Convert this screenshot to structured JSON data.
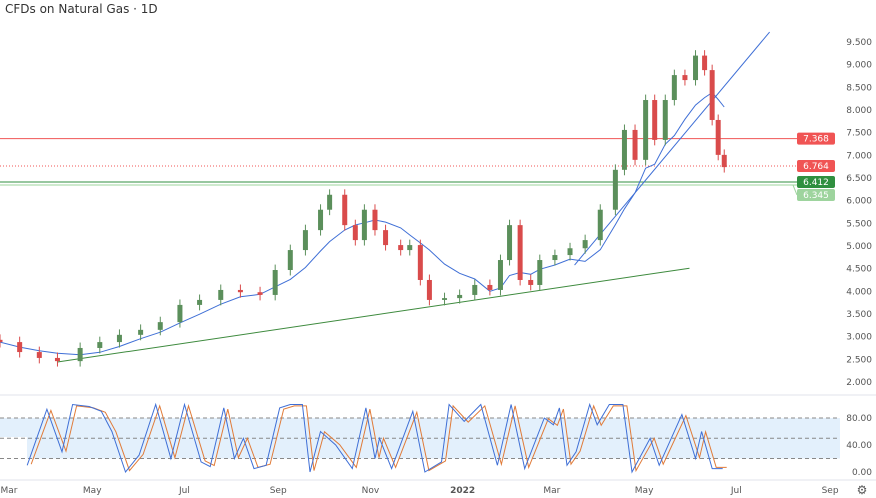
{
  "header": {
    "title": "CFDs on Natural Gas · 1D"
  },
  "colors": {
    "up": "#26a69a",
    "down": "#ef5350",
    "candle_up": "#5b8f5b",
    "candle_down": "#d94b4b",
    "ma": "#3f6fd6",
    "trend_support": "#3d8a3d",
    "trend_channel": "#3f6fd6",
    "stoch_k": "#3f6fd6",
    "stoch_d": "#e07b39",
    "stoch_band": "#e3f0fc"
  },
  "chart_data": [
    {
      "type": "candlestick",
      "title": "CFDs on Natural Gas · 1D",
      "xlim": [
        "2021-03-01",
        "2022-09-28"
      ],
      "ylim": [
        1.8,
        9.85
      ],
      "y_ticks": [
        "9.500",
        "9.000",
        "8.500",
        "8.000",
        "7.500",
        "7.000",
        "6.500",
        "6.000",
        "5.500",
        "5.000",
        "4.500",
        "4.000",
        "3.500",
        "3.000",
        "2.500",
        "2.000"
      ],
      "x_ticks": [
        {
          "date": "2021-03-01",
          "label": "Mar"
        },
        {
          "date": "2021-05-01",
          "label": "May"
        },
        {
          "date": "2021-07-01",
          "label": "Jul"
        },
        {
          "date": "2021-09-01",
          "label": "Sep"
        },
        {
          "date": "2021-11-01",
          "label": "Nov"
        },
        {
          "date": "2022-01-01",
          "label": "2022"
        },
        {
          "date": "2022-03-01",
          "label": "Mar"
        },
        {
          "date": "2022-05-01",
          "label": "May"
        },
        {
          "date": "2022-07-01",
          "label": "Jul"
        },
        {
          "date": "2022-09-01",
          "label": "Sep"
        }
      ],
      "closes": [
        [
          "2021-03-01",
          2.88
        ],
        [
          "2021-03-14",
          2.66
        ],
        [
          "2021-03-27",
          2.53
        ],
        [
          "2021-04-08",
          2.46
        ],
        [
          "2021-04-23",
          2.75
        ],
        [
          "2021-05-06",
          2.88
        ],
        [
          "2021-05-19",
          3.04
        ],
        [
          "2021-06-02",
          3.15
        ],
        [
          "2021-06-15",
          3.32
        ],
        [
          "2021-06-28",
          3.7
        ],
        [
          "2021-07-11",
          3.81
        ],
        [
          "2021-07-25",
          4.03
        ],
        [
          "2021-08-07",
          3.98
        ],
        [
          "2021-08-20",
          3.92
        ],
        [
          "2021-08-30",
          4.47
        ],
        [
          "2021-09-09",
          4.91
        ],
        [
          "2021-09-19",
          5.35
        ],
        [
          "2021-09-29",
          5.8
        ],
        [
          "2021-10-05",
          6.13
        ],
        [
          "2021-10-15",
          5.46
        ],
        [
          "2021-10-22",
          5.13
        ],
        [
          "2021-10-28",
          5.8
        ],
        [
          "2021-11-04",
          5.35
        ],
        [
          "2021-11-11",
          5.02
        ],
        [
          "2021-11-21",
          4.91
        ],
        [
          "2021-11-27",
          5.02
        ],
        [
          "2021-12-04",
          4.25
        ],
        [
          "2021-12-10",
          3.81
        ],
        [
          "2021-12-20",
          3.85
        ],
        [
          "2021-12-30",
          3.92
        ],
        [
          "2022-01-09",
          4.14
        ],
        [
          "2022-01-19",
          4.03
        ],
        [
          "2022-01-26",
          4.69
        ],
        [
          "2022-02-01",
          5.46
        ],
        [
          "2022-02-08",
          4.25
        ],
        [
          "2022-02-15",
          4.14
        ],
        [
          "2022-02-21",
          4.69
        ],
        [
          "2022-03-03",
          4.8
        ],
        [
          "2022-03-13",
          4.95
        ],
        [
          "2022-03-23",
          5.13
        ],
        [
          "2022-04-02",
          5.8
        ],
        [
          "2022-04-12",
          6.68
        ],
        [
          "2022-04-18",
          7.56
        ],
        [
          "2022-04-25",
          6.9
        ],
        [
          "2022-05-02",
          8.22
        ],
        [
          "2022-05-08",
          7.34
        ],
        [
          "2022-05-15",
          8.22
        ],
        [
          "2022-05-21",
          8.77
        ],
        [
          "2022-05-28",
          8.66
        ],
        [
          "2022-06-04",
          9.2
        ],
        [
          "2022-06-10",
          8.88
        ],
        [
          "2022-06-15",
          7.78
        ],
        [
          "2022-06-19",
          7.01
        ],
        [
          "2022-06-23",
          6.74
        ]
      ],
      "moving_average": {
        "type": "SMA",
        "period_days": 50
      },
      "levels": [
        {
          "value": 7.368,
          "label": "7.368",
          "color": "#f05454",
          "style": "solid"
        },
        {
          "value": 6.764,
          "label": "6.764",
          "color": "#f05454",
          "style": "dotted"
        },
        {
          "value": 6.412,
          "label": "6.412",
          "color": "#2f8f3f",
          "style": "solid"
        },
        {
          "value": 6.345,
          "label": "6.345",
          "color": "#9ed49e",
          "style": "solid"
        }
      ],
      "trendlines": [
        {
          "name": "support",
          "from": [
            "2021-04-08",
            2.44
          ],
          "to": [
            "2022-05-31",
            4.51
          ]
        },
        {
          "name": "channel",
          "from": [
            "2022-03-16",
            4.58
          ],
          "to": [
            "2022-07-23",
            9.72
          ]
        }
      ]
    },
    {
      "type": "line",
      "indicator": "stochastic",
      "ylim": [
        0,
        100
      ],
      "y_ticks": [
        "80.00",
        "40.00",
        "0.00"
      ],
      "levels": [
        80,
        50,
        20
      ],
      "k": [
        [
          "2021-03-19",
          10
        ],
        [
          "2021-04-01",
          93
        ],
        [
          "2021-04-11",
          30
        ],
        [
          "2021-04-18",
          100
        ],
        [
          "2021-04-29",
          97
        ],
        [
          "2021-05-07",
          90
        ],
        [
          "2021-05-14",
          60
        ],
        [
          "2021-05-23",
          0
        ],
        [
          "2021-06-01",
          25
        ],
        [
          "2021-06-12",
          100
        ],
        [
          "2021-06-22",
          20
        ],
        [
          "2021-07-01",
          100
        ],
        [
          "2021-07-12",
          15
        ],
        [
          "2021-07-18",
          8
        ],
        [
          "2021-07-27",
          95
        ],
        [
          "2021-08-03",
          20
        ],
        [
          "2021-08-09",
          50
        ],
        [
          "2021-08-16",
          5
        ],
        [
          "2021-08-24",
          10
        ],
        [
          "2021-09-02",
          95
        ],
        [
          "2021-09-09",
          100
        ],
        [
          "2021-09-17",
          100
        ],
        [
          "2021-09-22",
          0
        ],
        [
          "2021-09-29",
          60
        ],
        [
          "2021-10-09",
          40
        ],
        [
          "2021-10-20",
          5
        ],
        [
          "2021-10-29",
          95
        ],
        [
          "2021-11-04",
          20
        ],
        [
          "2021-11-07",
          50
        ],
        [
          "2021-11-15",
          5
        ],
        [
          "2021-11-29",
          90
        ],
        [
          "2021-12-07",
          0
        ],
        [
          "2021-12-18",
          15
        ],
        [
          "2021-12-23",
          100
        ],
        [
          "2022-01-02",
          75
        ],
        [
          "2022-01-13",
          100
        ],
        [
          "2022-01-24",
          10
        ],
        [
          "2022-02-02",
          100
        ],
        [
          "2022-02-11",
          5
        ],
        [
          "2022-02-24",
          80
        ],
        [
          "2022-03-02",
          70
        ],
        [
          "2022-03-06",
          95
        ],
        [
          "2022-03-11",
          10
        ],
        [
          "2022-03-17",
          30
        ],
        [
          "2022-03-26",
          100
        ],
        [
          "2022-03-31",
          70
        ],
        [
          "2022-04-08",
          100
        ],
        [
          "2022-04-17",
          100
        ],
        [
          "2022-04-23",
          0
        ],
        [
          "2022-05-05",
          50
        ],
        [
          "2022-05-11",
          10
        ],
        [
          "2022-05-18",
          45
        ],
        [
          "2022-05-26",
          85
        ],
        [
          "2022-06-04",
          20
        ],
        [
          "2022-06-08",
          60
        ],
        [
          "2022-06-15",
          5
        ],
        [
          "2022-06-22",
          5
        ]
      ]
    }
  ]
}
